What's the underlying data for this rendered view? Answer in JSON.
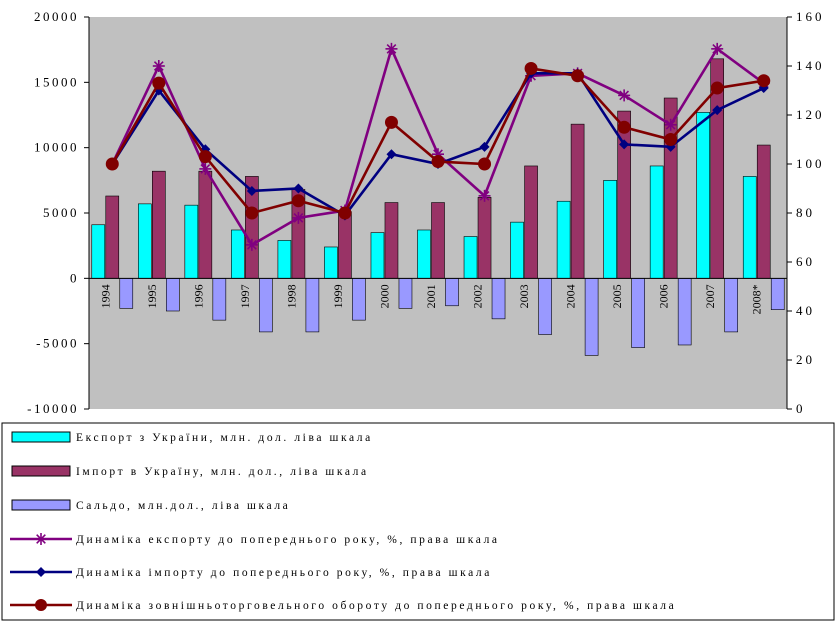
{
  "chart_data": {
    "type": "bar",
    "categories": [
      "1994",
      "1995",
      "1996",
      "1997",
      "1998",
      "1999",
      "2000",
      "2001",
      "2002",
      "2003",
      "2004",
      "2005",
      "2006",
      "2007",
      "2008*"
    ],
    "y_left_ticks": [
      "20000",
      "15000",
      "10000",
      "5000",
      "0",
      "-5000",
      "-10000"
    ],
    "y_right_ticks": [
      "160",
      "140",
      "120",
      "100",
      "80",
      "60",
      "40",
      "20",
      "0"
    ],
    "ylim_left": [
      -10000,
      20000
    ],
    "ylim_right": [
      0,
      160
    ],
    "plot_background": "#c0c0c0",
    "grid": false,
    "legend_position": "bottom",
    "series": [
      {
        "name": "Експорт з України, млн. дол. ліва шкала",
        "kind": "bar",
        "axis": "left",
        "color": "#00ffff",
        "values": [
          4100,
          5700,
          5600,
          3700,
          2900,
          2400,
          3500,
          3700,
          3200,
          4300,
          5900,
          7500,
          8600,
          12700,
          7800
        ]
      },
      {
        "name": "Імпорт в Україну, млн. дол., ліва шкала",
        "kind": "bar",
        "axis": "left",
        "color": "#993366",
        "values": [
          6300,
          8200,
          8200,
          7800,
          6800,
          5100,
          5800,
          5800,
          6200,
          8600,
          11800,
          12800,
          13800,
          16800,
          10200
        ]
      },
      {
        "name": "Сальдо, млн.дол., ліва шкала",
        "kind": "bar",
        "axis": "left",
        "color": "#9999ff",
        "values": [
          -2300,
          -2500,
          -3200,
          -4100,
          -4100,
          -3200,
          -2300,
          -2100,
          -3100,
          -4300,
          -5900,
          -5300,
          -5100,
          -4100,
          -2400
        ]
      },
      {
        "name": "Динаміка експорту до попереднього року, %, права шкала",
        "kind": "line",
        "axis": "right",
        "color": "#800080",
        "marker": "star",
        "values": [
          100,
          140,
          98,
          67,
          78,
          81,
          147,
          104,
          87,
          136,
          137,
          128,
          116,
          147,
          133
        ]
      },
      {
        "name": "Динаміка імпорту до попереднього року, %, права шкала",
        "kind": "line",
        "axis": "right",
        "color": "#000080",
        "marker": "diamond",
        "values": [
          100,
          130,
          106,
          89,
          90,
          79,
          104,
          100,
          107,
          137,
          137,
          108,
          107,
          122,
          131
        ]
      },
      {
        "name": "Динаміка зовнішньоторговельного обороту до попереднього року, %, права шкала",
        "kind": "line",
        "axis": "right",
        "color": "#800000",
        "marker": "circle",
        "values": [
          100,
          133,
          103,
          80,
          85,
          80,
          117,
          101,
          100,
          139,
          136,
          115,
          110,
          131,
          134
        ]
      }
    ]
  }
}
